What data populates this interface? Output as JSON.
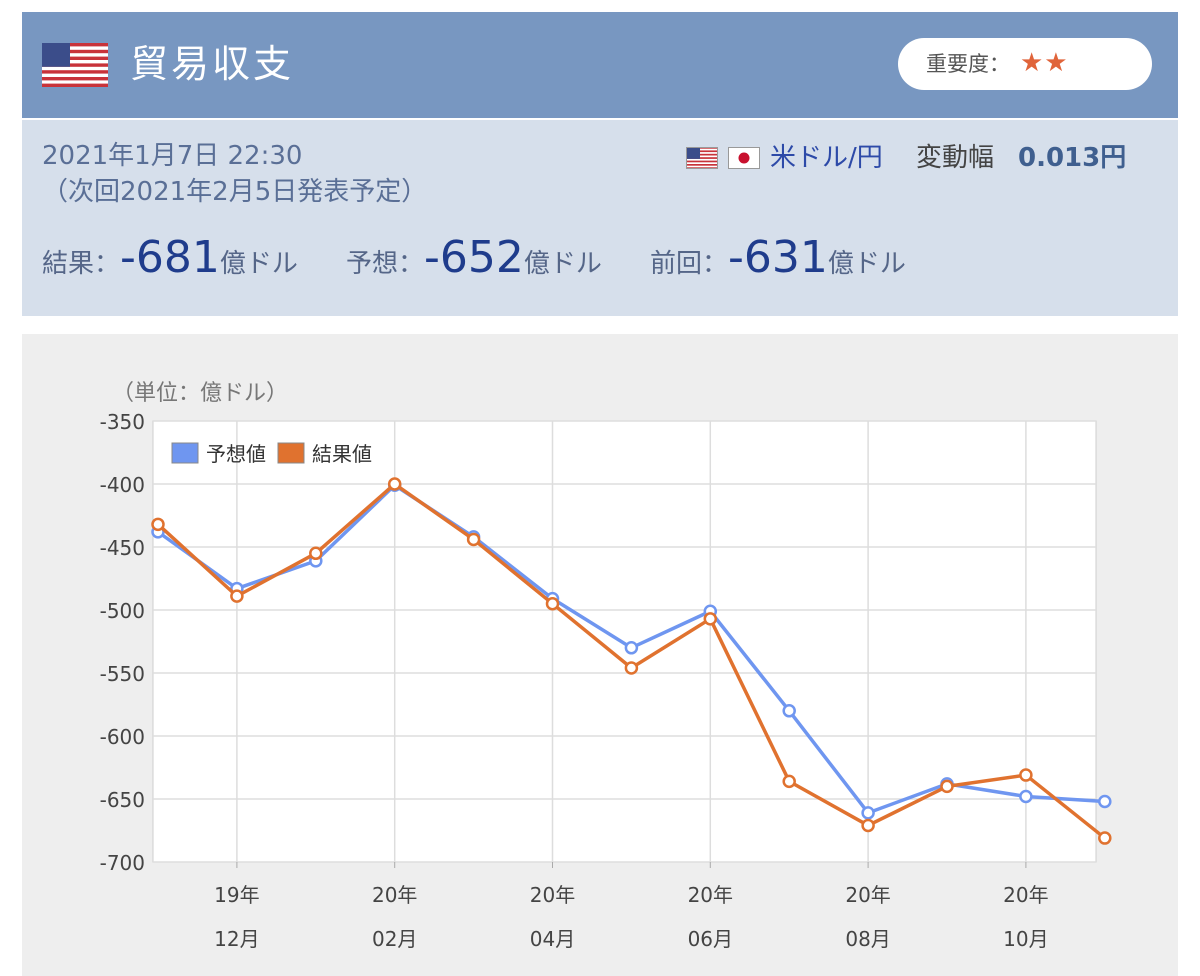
{
  "header": {
    "title": "貿易収支",
    "flag_icon": "us-flag-icon",
    "importance_label": "重要度：",
    "importance_stars": "★★"
  },
  "info": {
    "datetime": "2021年1月7日 22:30",
    "next": "（次回2021年2月5日発表予定）",
    "pair_flags": [
      "us-flag-icon",
      "jp-flag-icon"
    ],
    "pair": "米ドル/円",
    "range_label": "変動幅",
    "range_value": "0.013円",
    "result_label": "結果：",
    "result_value": "-681",
    "result_unit": "億ドル",
    "forecast_label": "予想：",
    "forecast_value": "-652",
    "forecast_unit": "億ドル",
    "previous_label": "前回：",
    "previous_value": "-631",
    "previous_unit": "億ドル"
  },
  "colors": {
    "header_bg": "#7897c1",
    "info_bg": "#d6dfeb",
    "forecast_series": "#6f96f0",
    "result_series": "#e0722f"
  },
  "chart_data": {
    "type": "line",
    "unit_label": "（単位：億ドル）",
    "ylim": [
      -700,
      -350
    ],
    "yticks": [
      -350,
      -400,
      -450,
      -500,
      -550,
      -600,
      -650,
      -700
    ],
    "xtick_labels": [
      [
        "19年",
        "12月"
      ],
      [
        "20年",
        "02月"
      ],
      [
        "20年",
        "04月"
      ],
      [
        "20年",
        "06月"
      ],
      [
        "20年",
        "08月"
      ],
      [
        "20年",
        "10月"
      ]
    ],
    "categories": [
      "19/11",
      "19/12",
      "20/01",
      "20/02",
      "20/03",
      "20/04",
      "20/05",
      "20/06",
      "20/07",
      "20/08",
      "20/09",
      "20/10",
      "20/11"
    ],
    "series": [
      {
        "name": "予想値",
        "color": "#6f96f0",
        "values": [
          -438,
          -483,
          -461,
          -401,
          -442,
          -491,
          -530,
          -501,
          -580,
          -661,
          -638,
          -648,
          -652
        ]
      },
      {
        "name": "結果値",
        "color": "#e0722f",
        "values": [
          -432,
          -489,
          -455,
          -400,
          -444,
          -495,
          -546,
          -507,
          -636,
          -671,
          -640,
          -631,
          -681
        ]
      }
    ],
    "grid": true,
    "legend": "top-left"
  }
}
